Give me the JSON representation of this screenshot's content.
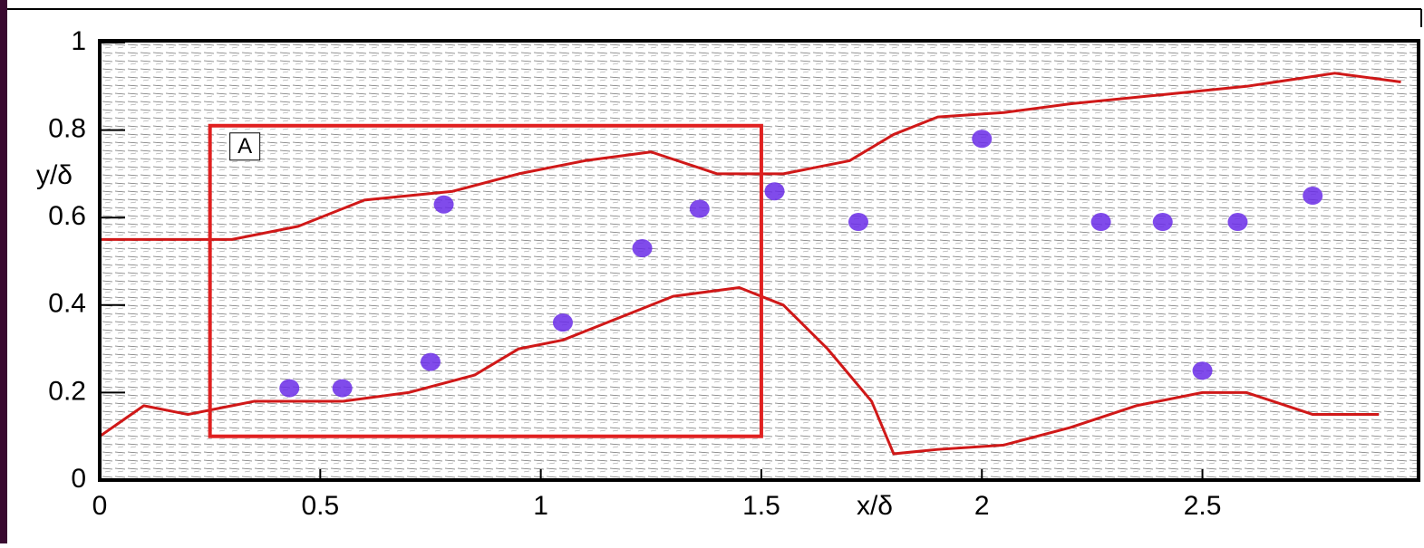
{
  "chart_data": {
    "type": "line",
    "xlabel": "x/δ",
    "ylabel": "y/δ",
    "xlim": [
      0,
      2.99
    ],
    "ylim": [
      0,
      1
    ],
    "xticks": [
      0,
      0.5,
      1,
      1.5,
      2,
      2.5
    ],
    "yticks": [
      0,
      0.2,
      0.4,
      0.6,
      0.8,
      1
    ],
    "series": [
      {
        "color": "#d01818",
        "x": [
          0,
          0.1,
          0.2,
          0.35,
          0.55,
          0.7,
          0.85,
          0.95,
          1.05,
          1.2,
          1.3,
          1.45,
          1.55,
          1.65,
          1.75,
          1.8,
          1.9,
          2.05,
          2.2,
          2.35,
          2.5,
          2.6,
          2.75,
          2.9
        ],
        "y": [
          0.1,
          0.17,
          0.15,
          0.18,
          0.18,
          0.2,
          0.24,
          0.3,
          0.32,
          0.38,
          0.42,
          0.44,
          0.4,
          0.3,
          0.18,
          0.06,
          0.07,
          0.08,
          0.12,
          0.17,
          0.2,
          0.2,
          0.15,
          0.15
        ]
      },
      {
        "color": "#d01818",
        "x": [
          0,
          0.15,
          0.3,
          0.45,
          0.6,
          0.8,
          0.95,
          1.1,
          1.25,
          1.4,
          1.55,
          1.7,
          1.8,
          1.9,
          2.05,
          2.2,
          2.4,
          2.6,
          2.8,
          2.95
        ],
        "y": [
          0.55,
          0.55,
          0.55,
          0.58,
          0.64,
          0.66,
          0.7,
          0.73,
          0.75,
          0.7,
          0.7,
          0.73,
          0.79,
          0.83,
          0.84,
          0.86,
          0.88,
          0.9,
          0.93,
          0.91
        ]
      }
    ],
    "vortices": {
      "color": "#6a2ce8",
      "x": [
        0.75,
        1.05,
        1.23,
        0.43,
        0.55,
        2.0,
        2.5,
        1.36,
        0.78,
        1.53,
        2.75,
        2.41,
        2.27,
        1.72,
        2.58
      ],
      "y": [
        0.27,
        0.36,
        0.53,
        0.21,
        0.21,
        0.78,
        0.25,
        0.62,
        0.63,
        0.66,
        0.65,
        0.59,
        0.59,
        0.59,
        0.59
      ]
    },
    "annotations": [
      {
        "text": "A",
        "x0": 0.25,
        "x1": 1.5,
        "y0": 0.1,
        "y1": 0.81,
        "color": "#e02020"
      }
    ]
  }
}
